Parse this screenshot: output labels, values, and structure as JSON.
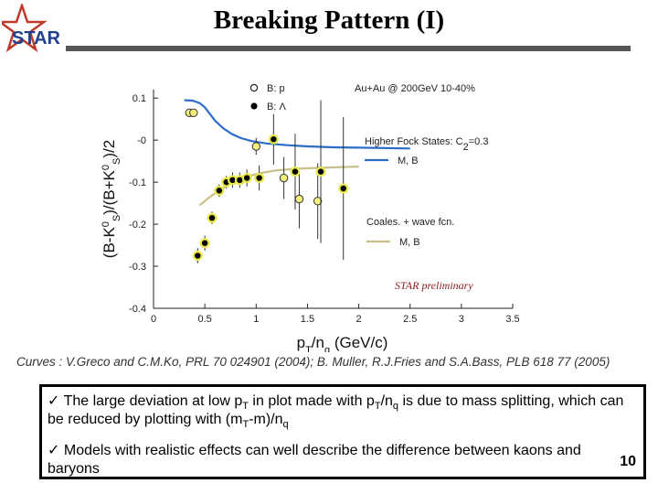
{
  "slide": {
    "title": "Breaking Pattern (I)",
    "logo_text": "STAR",
    "caption": "Curves : V.Greco and C.M.Ko, PRL 70 024901 (2004); B. Muller, R.J.Fries and S.A.Bass, PLB 618 77 (2005)",
    "bullets": [
      {
        "mark": "✓",
        "parts": [
          "The large deviation at low p",
          "T",
          " in plot made with p",
          "T",
          "/n",
          "q",
          " is due to mass splitting, which can be reduced by plotting with (m",
          "T",
          "-m)/n",
          "q"
        ]
      },
      {
        "mark": "✓",
        "text": "Models with realistic effects can well describe the difference between kaons and baryons"
      }
    ],
    "page_number": "10"
  },
  "chart_data": {
    "type": "scatter",
    "title": "",
    "xlabel_parts": [
      "p",
      "T",
      "/n",
      "q",
      " (GeV/c)"
    ],
    "ylabel_parts": [
      "(B-K",
      "0",
      "S",
      ")/(B+K",
      "0",
      "S",
      ")/2"
    ],
    "xlim": [
      0,
      3.5
    ],
    "ylim": [
      -0.4,
      0.12
    ],
    "xticks": [
      0,
      0.5,
      1,
      1.5,
      2,
      2.5,
      3,
      3.5
    ],
    "xtick_labels": [
      "0",
      "0.5",
      "1",
      "1.5",
      "2",
      "2.5",
      "3",
      "3.5"
    ],
    "yticks": [
      0.1,
      0,
      -0.1,
      -0.2,
      -0.3,
      -0.4
    ],
    "ytick_labels": [
      "0.1",
      "-0",
      "-0.1",
      "-0.2",
      "-0.3",
      "-0.4"
    ],
    "annotations": {
      "system": "Au+Au @ 200GeV 10-40%",
      "fock": "Higher Fock States: C",
      "fock_sub": "2",
      "fock_val": "=0.3",
      "coales": "Coales. + wave fcn.",
      "preliminary": "STAR preliminary"
    },
    "legend": [
      {
        "label": "B: p",
        "marker": "open-circle"
      },
      {
        "label": "B: Λ",
        "marker": "filled-circle"
      },
      {
        "label": "M, B",
        "line_color": "#2a6cc8"
      },
      {
        "label": "M, B",
        "line_color": "#c8bf8c"
      }
    ],
    "series": [
      {
        "name": "B: p",
        "marker": "open-circle",
        "points": [
          {
            "x": 0.35,
            "y": 0.065,
            "err": 0.008
          },
          {
            "x": 0.39,
            "y": 0.065,
            "err": 0.008
          },
          {
            "x": 1.0,
            "y": -0.015,
            "err": 0.02
          },
          {
            "x": 1.27,
            "y": -0.09,
            "err": 0.05
          },
          {
            "x": 1.42,
            "y": -0.14,
            "err": 0.07
          },
          {
            "x": 1.6,
            "y": -0.145,
            "err": 0.09
          }
        ]
      },
      {
        "name": "B: Λ",
        "marker": "filled-circle",
        "points": [
          {
            "x": 0.43,
            "y": -0.275,
            "err": 0.018
          },
          {
            "x": 0.5,
            "y": -0.245,
            "err": 0.018
          },
          {
            "x": 0.57,
            "y": -0.185,
            "err": 0.015
          },
          {
            "x": 0.64,
            "y": -0.12,
            "err": 0.015
          },
          {
            "x": 0.71,
            "y": -0.1,
            "err": 0.015
          },
          {
            "x": 0.77,
            "y": -0.095,
            "err": 0.018
          },
          {
            "x": 0.84,
            "y": -0.095,
            "err": 0.018
          },
          {
            "x": 0.91,
            "y": -0.09,
            "err": 0.02
          },
          {
            "x": 1.03,
            "y": -0.09,
            "err": 0.03
          },
          {
            "x": 1.17,
            "y": 0.002,
            "err": 0.06
          },
          {
            "x": 1.38,
            "y": -0.075,
            "err": 0.09
          },
          {
            "x": 1.63,
            "y": -0.075,
            "err": 0.17
          },
          {
            "x": 1.85,
            "y": -0.115,
            "err": 0.17
          }
        ]
      }
    ],
    "curves": [
      {
        "name": "Higher Fock States",
        "color": "#2a6cc8",
        "points": [
          [
            0.3,
            0.095
          ],
          [
            0.38,
            0.094
          ],
          [
            0.45,
            0.088
          ],
          [
            0.5,
            0.078
          ],
          [
            0.55,
            0.062
          ],
          [
            0.6,
            0.046
          ],
          [
            0.68,
            0.028
          ],
          [
            0.76,
            0.015
          ],
          [
            0.85,
            0.005
          ],
          [
            0.95,
            -0.002
          ],
          [
            1.1,
            -0.008
          ],
          [
            1.3,
            -0.012
          ],
          [
            1.5,
            -0.015
          ],
          [
            1.75,
            -0.017
          ],
          [
            2.0,
            -0.018
          ],
          [
            2.5,
            -0.02
          ]
        ]
      },
      {
        "name": "Coales. + wave fcn.",
        "color": "#c8bf8c",
        "points": [
          [
            0.45,
            -0.155
          ],
          [
            0.55,
            -0.135
          ],
          [
            0.65,
            -0.118
          ],
          [
            0.75,
            -0.104
          ],
          [
            0.85,
            -0.093
          ],
          [
            0.95,
            -0.084
          ],
          [
            1.05,
            -0.078
          ],
          [
            1.2,
            -0.072
          ],
          [
            1.4,
            -0.068
          ],
          [
            1.6,
            -0.066
          ],
          [
            1.85,
            -0.064
          ],
          [
            2.0,
            -0.063
          ]
        ]
      }
    ]
  }
}
